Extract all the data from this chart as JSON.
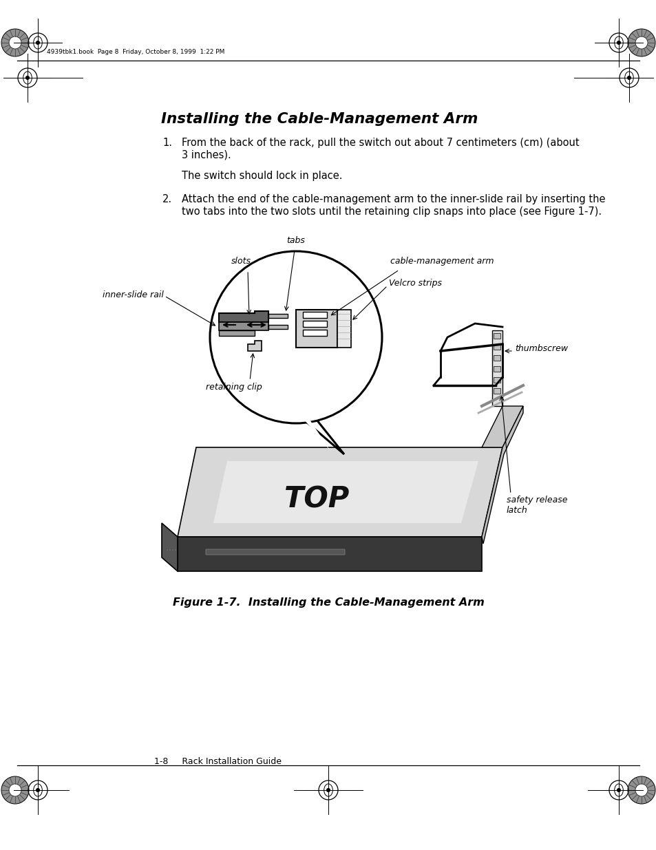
{
  "page_title": "Installing the Cable-Management Arm",
  "header_text": "4939tbk1.book  Page 8  Friday, October 8, 1999  1:22 PM",
  "footer_text": "1-8     Rack Installation Guide",
  "figure_caption": "Figure 1-7.  Installing the Cable-Management Arm",
  "step1_number": "1.",
  "step1_line1": "From the back of the rack, pull the switch out about 7 centimeters (cm) (about",
  "step1_line2": "3 inches).",
  "step1_subtext": "The switch should lock in place.",
  "step2_number": "2.",
  "step2_line1": "Attach the end of the cable-management arm to the inner-slide rail by inserting the",
  "step2_line2": "two tabs into the two slots until the retaining clip snaps into place (see Figure 1-7).",
  "label_tabs": "tabs",
  "label_slots": "slots",
  "label_cma": "cable-management arm",
  "label_velcro": "Velcro strips",
  "label_thumbscrew": "thumbscrew",
  "label_retaining": "retaining clip",
  "label_safety": "safety release\nlatch",
  "label_inner": "inner-slide rail",
  "background_color": "#ffffff",
  "text_color": "#000000"
}
